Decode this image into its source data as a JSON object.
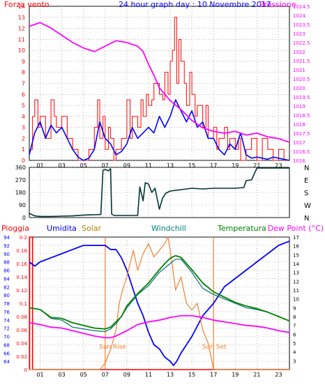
{
  "header": {
    "left_label": "Forza vento",
    "title": "24 hour graph day : 10 Novembre 2017",
    "right_label": "Pressione"
  },
  "bottom_labels": {
    "pioggia": "Pioggia",
    "umidita": "Umidita",
    "solar": "Solar",
    "windchill": "Windchill",
    "temperatura": "Temperatura",
    "dewpoint": "Dew Point (°C)"
  },
  "colors": {
    "wind": "#ff0000",
    "gust": "#0000ff",
    "pressure": "#ff00ff",
    "direction": "#003333",
    "rain": "#ff0000",
    "humidity": "#0000ff",
    "solar": "#f08030",
    "windchill": "#007070",
    "temperature": "#008000",
    "dewpoint": "#ff00ff",
    "grid": "#808080"
  },
  "chart_data": [
    {
      "type": "line",
      "panel": "wind-pressure",
      "x_ticks": [
        "01",
        "03",
        "05",
        "07",
        "09",
        "11",
        "13",
        "15",
        "17",
        "19",
        "21",
        "23"
      ],
      "ylim_left": [
        0,
        14
      ],
      "y_left_ticks": [
        "0",
        "1",
        "2",
        "3",
        "4",
        "5",
        "6",
        "7",
        "8",
        "9",
        "10",
        "11",
        "12",
        "13",
        "14"
      ],
      "ylim_right": [
        1016,
        1084.5
      ],
      "y_right_ticks": [
        "1016",
        "1016.5",
        "1017",
        "1017.5",
        "1018",
        "1018.5",
        "1019",
        "1019.5",
        "1020",
        "1020.5",
        "1021",
        "1021.5",
        "1022",
        "1022.5",
        "1023",
        "1023.5",
        "1024",
        "1024.5"
      ],
      "series": [
        {
          "key": "wind",
          "name": "Forza vento",
          "x": [
            0,
            0.3,
            0.5,
            0.8,
            1,
            1.5,
            2,
            2.3,
            2.5,
            3,
            3.5,
            4,
            4.5,
            5,
            5.5,
            6,
            6.3,
            6.5,
            6.8,
            7,
            7.3,
            7.5,
            7.8,
            8,
            8.5,
            9,
            9.3,
            9.5,
            10,
            10.3,
            10.5,
            10.8,
            11,
            11.3,
            11.5,
            12,
            12.3,
            12.5,
            12.8,
            13,
            13.2,
            13.4,
            13.6,
            13.8,
            14,
            14.3,
            14.5,
            14.8,
            15,
            15.3,
            15.5,
            16,
            16.3,
            16.5,
            17,
            17.3,
            17.5,
            18,
            18.3,
            18.5,
            19,
            19.3,
            19.5,
            20,
            20.5,
            21,
            21.5,
            22,
            22.5,
            23,
            23.5,
            24
          ],
          "values": [
            1,
            4,
            5.5,
            3,
            4,
            2,
            5.5,
            4,
            3,
            4,
            2,
            1,
            0,
            0,
            1,
            3,
            5.5,
            2,
            4,
            1,
            3,
            2,
            0,
            1,
            2,
            5.5,
            2,
            4,
            3,
            5.5,
            4,
            6,
            5,
            5.5,
            7,
            6,
            5.5,
            8,
            6,
            9,
            10,
            13,
            7,
            11,
            9,
            7,
            5,
            8,
            6,
            4,
            5,
            3,
            5,
            2,
            3,
            1,
            2,
            3,
            1,
            2,
            1,
            2,
            0,
            1,
            2,
            0,
            2,
            1,
            0,
            1,
            0,
            0
          ]
        },
        {
          "key": "gust",
          "name": "",
          "x": [
            0,
            0.5,
            1,
            1.5,
            2,
            2.5,
            3,
            3.5,
            4,
            4.5,
            5,
            5.5,
            6,
            6.5,
            7,
            7.5,
            8,
            8.5,
            9,
            9.5,
            10,
            10.5,
            11,
            11.5,
            12,
            12.5,
            13,
            13.5,
            14,
            14.5,
            15,
            15.5,
            16,
            16.5,
            17,
            17.5,
            18,
            18.5,
            19,
            19.5,
            20,
            20.5,
            21,
            21.5,
            22,
            22.5,
            23,
            23.5,
            24
          ],
          "values": [
            0.5,
            2.5,
            3.5,
            2,
            3.2,
            2.5,
            3,
            2,
            1,
            0.3,
            0,
            0.2,
            1,
            3.5,
            2,
            1.5,
            0.5,
            0.8,
            1.5,
            3,
            2,
            2.5,
            3,
            2.5,
            4,
            3,
            4,
            5.5,
            4.5,
            3.5,
            4.5,
            3,
            3.5,
            2,
            2,
            1,
            0.5,
            1.5,
            1,
            2.5,
            0.5,
            0.2,
            0.3,
            0.2,
            0.1,
            0.3,
            0.2,
            0.1,
            0
          ]
        },
        {
          "key": "pressure",
          "name": "Pressione",
          "x": [
            0,
            1,
            2,
            3,
            4,
            5,
            6,
            7,
            8,
            9,
            10,
            10.5,
            11,
            11.5,
            12,
            13,
            14,
            15,
            16,
            17,
            18,
            19,
            20,
            21,
            22,
            23,
            24
          ],
          "values": [
            1023.4,
            1023.6,
            1023.3,
            1022.9,
            1022.5,
            1022.2,
            1022.0,
            1022.3,
            1022.6,
            1022.5,
            1022.3,
            1022.0,
            1021.3,
            1020.7,
            1020.0,
            1019.3,
            1018.8,
            1018.2,
            1017.8,
            1017.6,
            1017.5,
            1017.6,
            1017.4,
            1017.5,
            1017.3,
            1017.2,
            1017.0
          ]
        }
      ]
    },
    {
      "type": "line",
      "panel": "wind-direction",
      "name": "wind direction",
      "ylim": [
        0,
        360
      ],
      "y_ticks": [
        "0",
        "90",
        "180",
        "270",
        "360"
      ],
      "y_right_ticks": [
        "N",
        "W",
        "S",
        "E",
        "N"
      ],
      "x": [
        0,
        0.5,
        1,
        2,
        3,
        4,
        5,
        6,
        6.6,
        6.8,
        7,
        7.3,
        7.5,
        7.6,
        7.8,
        8,
        8.5,
        9,
        9.5,
        10,
        10.2,
        10.5,
        10.7,
        11,
        11.3,
        11.6,
        12,
        12.3,
        12.6,
        13,
        14,
        15,
        16,
        17,
        18,
        19,
        19.8,
        20,
        20.5,
        21,
        22,
        23,
        24
      ],
      "values": [
        30,
        12,
        8,
        8,
        10,
        12,
        18,
        20,
        22,
        340,
        345,
        335,
        350,
        25,
        15,
        15,
        15,
        15,
        15,
        15,
        220,
        120,
        250,
        240,
        180,
        210,
        60,
        140,
        175,
        190,
        200,
        210,
        205,
        210,
        210,
        210,
        215,
        265,
        270,
        355,
        355,
        355,
        355
      ]
    },
    {
      "type": "line",
      "panel": "rain-humidity-temperature",
      "ylim_humidity": [
        62,
        94
      ],
      "y_humidity_ticks": [
        "64",
        "66",
        "68",
        "70",
        "72",
        "74",
        "76",
        "78",
        "80",
        "82",
        "84",
        "86",
        "88",
        "90",
        "92",
        "94"
      ],
      "ylim_rain": [
        0,
        0.2
      ],
      "y_rain_ticks": [
        "0",
        "0.02",
        "0.04",
        "0.06",
        "0.08",
        "0.1",
        "0.12",
        "0.14",
        "0.16",
        "0.18",
        "0.2"
      ],
      "ylim_temp": [
        2,
        17
      ],
      "y_temp_ticks": [
        "3",
        "4",
        "5",
        "6",
        "7",
        "8",
        "9",
        "10",
        "11",
        "12",
        "13",
        "14",
        "15",
        "16",
        "17"
      ],
      "annotations": [
        "Sun Rise",
        "Sun Set"
      ],
      "series": [
        {
          "key": "rain",
          "name": "Pioggia",
          "x": [
            -0.6,
            -0.6,
            0.3,
            0.3,
            24
          ],
          "values": [
            0,
            0.2,
            0.2,
            0,
            0
          ]
        },
        {
          "key": "humidity",
          "name": "Umidita",
          "x": [
            0,
            0.5,
            1,
            2,
            3,
            4,
            5,
            6,
            7,
            7.5,
            8,
            8.5,
            9,
            9.5,
            10,
            10.5,
            11,
            11.5,
            12,
            12.5,
            13,
            13.3,
            13.6,
            14,
            14.5,
            15,
            16,
            17,
            18,
            19,
            20,
            21,
            22,
            23,
            24
          ],
          "values": [
            88,
            87,
            88,
            89,
            90,
            91,
            92,
            92,
            92,
            91,
            91,
            89,
            86,
            82,
            78,
            75,
            71,
            68,
            67,
            65,
            64,
            63,
            64,
            66,
            68,
            70,
            75,
            78,
            82,
            84,
            86,
            88,
            90,
            92,
            93
          ]
        },
        {
          "key": "solar",
          "name": "Solar",
          "x": [
            0,
            6.5,
            7,
            7.5,
            8,
            8.3,
            8.6,
            9,
            9.3,
            9.6,
            10,
            10.5,
            11,
            11.5,
            12,
            12.5,
            12.8,
            13,
            13.5,
            14,
            14.5,
            15,
            15.5,
            16,
            16.5,
            17,
            24
          ],
          "values": [
            0,
            0,
            0.01,
            0.03,
            0.06,
            0.1,
            0.12,
            0.14,
            0.16,
            0.18,
            0.15,
            0.175,
            0.19,
            0.17,
            0.18,
            0.19,
            0.2,
            0.18,
            0.12,
            0.14,
            0.1,
            0.09,
            0.1,
            0.06,
            0.04,
            0,
            0
          ]
        },
        {
          "key": "windchill",
          "name": "Windchill",
          "x": [
            0,
            1,
            2,
            3,
            4,
            5,
            6,
            7,
            7.5,
            8,
            8.5,
            9,
            10,
            11,
            12,
            13,
            13.5,
            14,
            15,
            16,
            17,
            18,
            19,
            20,
            21,
            22,
            23,
            24
          ],
          "values": [
            9,
            8.8,
            7.8,
            7.6,
            6.8,
            6.6,
            6.4,
            6.3,
            6.6,
            7.2,
            8,
            9,
            10.5,
            11.5,
            13,
            14,
            14.5,
            14.5,
            13,
            11.2,
            10.5,
            10,
            9.5,
            9,
            8.8,
            8.5,
            8,
            7.5
          ]
        },
        {
          "key": "temperature",
          "name": "Temperatura",
          "x": [
            0,
            1,
            2,
            3,
            4,
            5,
            6,
            7,
            7.5,
            8,
            8.5,
            9,
            10,
            11,
            12,
            12.5,
            13,
            13.5,
            14,
            15,
            16,
            17,
            18,
            19,
            20,
            21,
            22,
            23,
            24
          ],
          "values": [
            9,
            8.8,
            7.9,
            7.8,
            7.3,
            7,
            6.7,
            6.6,
            6.8,
            7.4,
            8,
            9.2,
            10.6,
            11.8,
            13.3,
            14,
            14.6,
            14.9,
            14.7,
            13.3,
            11.8,
            10.8,
            10.2,
            9.6,
            9.2,
            8.9,
            8.5,
            8,
            7.5
          ]
        },
        {
          "key": "dewpoint",
          "name": "Dew Point (°C)",
          "x": [
            0,
            1,
            2,
            3,
            4,
            5,
            6,
            7,
            7.5,
            8,
            9,
            10,
            11,
            12,
            13,
            14,
            15,
            16,
            17,
            18,
            19,
            20,
            21,
            22,
            23,
            24
          ],
          "values": [
            7.3,
            7.1,
            6.8,
            6.7,
            6.4,
            6.1,
            5.8,
            5.6,
            5.6,
            5.8,
            6.4,
            7.1,
            7.4,
            7.6,
            7.9,
            8.1,
            8.1,
            7.9,
            7.6,
            7.4,
            7.2,
            7,
            6.9,
            6.7,
            6.4,
            6.2
          ]
        }
      ]
    }
  ]
}
